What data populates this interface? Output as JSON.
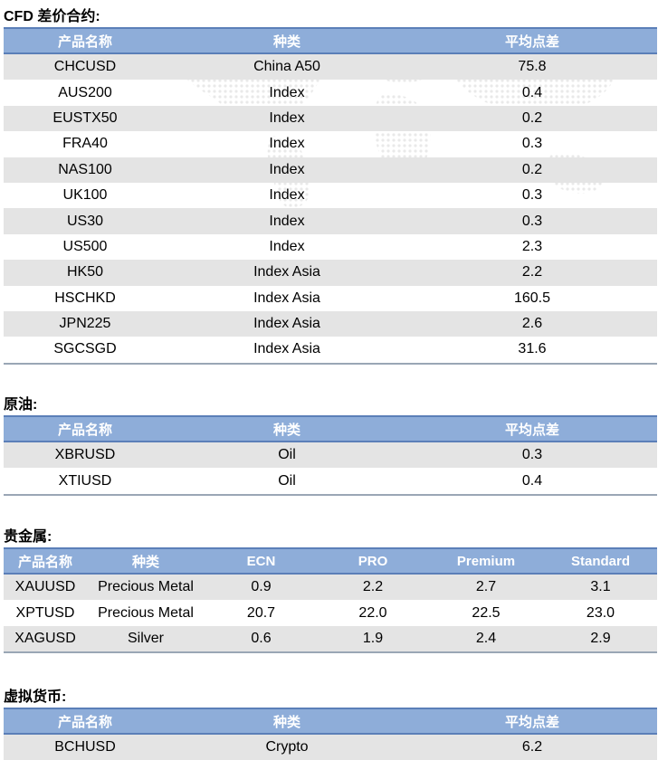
{
  "sections": {
    "cfd": {
      "title": "CFD 差价合约:",
      "headers": [
        "产品名称",
        "种类",
        "平均点差"
      ],
      "rows": [
        [
          "CHCUSD",
          "China A50",
          "75.8"
        ],
        [
          "AUS200",
          "Index",
          "0.4"
        ],
        [
          "EUSTX50",
          "Index",
          "0.2"
        ],
        [
          "FRA40",
          "Index",
          "0.3"
        ],
        [
          "NAS100",
          "Index",
          "0.2"
        ],
        [
          "UK100",
          "Index",
          "0.3"
        ],
        [
          "US30",
          "Index",
          "0.3"
        ],
        [
          "US500",
          "Index",
          "2.3"
        ],
        [
          "HK50",
          "Index Asia",
          "2.2"
        ],
        [
          "HSCHKD",
          "Index Asia",
          "160.5"
        ],
        [
          "JPN225",
          "Index Asia",
          "2.6"
        ],
        [
          "SGCSGD",
          "Index Asia",
          "31.6"
        ]
      ]
    },
    "oil": {
      "title": "原油:",
      "headers": [
        "产品名称",
        "种类",
        "平均点差"
      ],
      "rows": [
        [
          "XBRUSD",
          "Oil",
          "0.3"
        ],
        [
          "XTIUSD",
          "Oil",
          "0.4"
        ]
      ]
    },
    "metals": {
      "title": "贵金属:",
      "headers": [
        "产品名称",
        "种类",
        "ECN",
        "PRO",
        "Premium",
        "Standard"
      ],
      "rows": [
        [
          "XAUUSD",
          "Precious Metal",
          "0.9",
          "2.2",
          "2.7",
          "3.1"
        ],
        [
          "XPTUSD",
          "Precious Metal",
          "20.7",
          "22.0",
          "22.5",
          "23.0"
        ],
        [
          "XAGUSD",
          "Silver",
          "0.6",
          "1.9",
          "2.4",
          "2.9"
        ]
      ]
    },
    "crypto": {
      "title": "虚拟货币:",
      "headers": [
        "产品名称",
        "种类",
        "平均点差"
      ],
      "rows": [
        [
          "BCHUSD",
          "Crypto",
          "6.2"
        ]
      ]
    }
  }
}
